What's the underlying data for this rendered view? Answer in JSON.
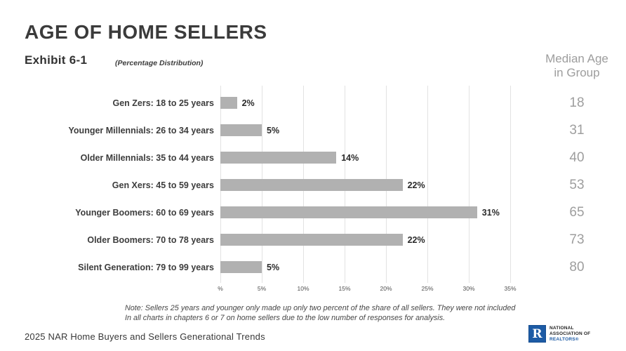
{
  "header": {
    "title": "AGE OF HOME SELLERS",
    "exhibit": "Exhibit 6-1",
    "subtitle": "(Percentage Distribution)"
  },
  "median_column": {
    "header_line1": "Median Age",
    "header_line2": "in Group"
  },
  "chart_data": {
    "type": "bar",
    "orientation": "horizontal",
    "title": "AGE OF HOME SELLERS",
    "subtitle": "(Percentage Distribution)",
    "categories": [
      "Gen Zers: 18 to 25 years",
      "Younger Millennials: 26 to 34 years",
      "Older Millennials: 35 to 44 years",
      "Gen Xers: 45 to 59 years",
      "Younger Boomers: 60 to 69 years",
      "Older Boomers: 70 to 78 years",
      "Silent Generation: 79 to 99 years"
    ],
    "values": [
      2,
      5,
      14,
      22,
      31,
      22,
      5
    ],
    "value_labels": [
      "2%",
      "5%",
      "14%",
      "22%",
      "31%",
      "22%",
      "5%"
    ],
    "median_ages": [
      18,
      31,
      40,
      53,
      65,
      73,
      80
    ],
    "xlim": [
      0,
      35
    ],
    "tick_labels": [
      "%",
      "5%",
      "10%",
      "15%",
      "20%",
      "25%",
      "30%",
      "35%"
    ],
    "grid": true,
    "legend": "none",
    "bar_color": "#b1b1b1"
  },
  "note": {
    "line1": "Note: Sellers 25 years and younger only made up only two percent of the share of all sellers. They were not included",
    "line2": "In all charts in chapters 6 or 7 on home sellers due to the low number of responses for analysis."
  },
  "footer": {
    "source": "2025 NAR Home Buyers and Sellers Generational Trends",
    "logo": {
      "mark": "R",
      "line1": "NATIONAL",
      "line2": "ASSOCIATION OF",
      "line3": "REALTORS®"
    }
  },
  "colors": {
    "bar": "#b1b1b1",
    "gridline": "#e2e2e2",
    "muted_gray": "#9d9d9d",
    "nar_blue": "#1d5ba5"
  }
}
